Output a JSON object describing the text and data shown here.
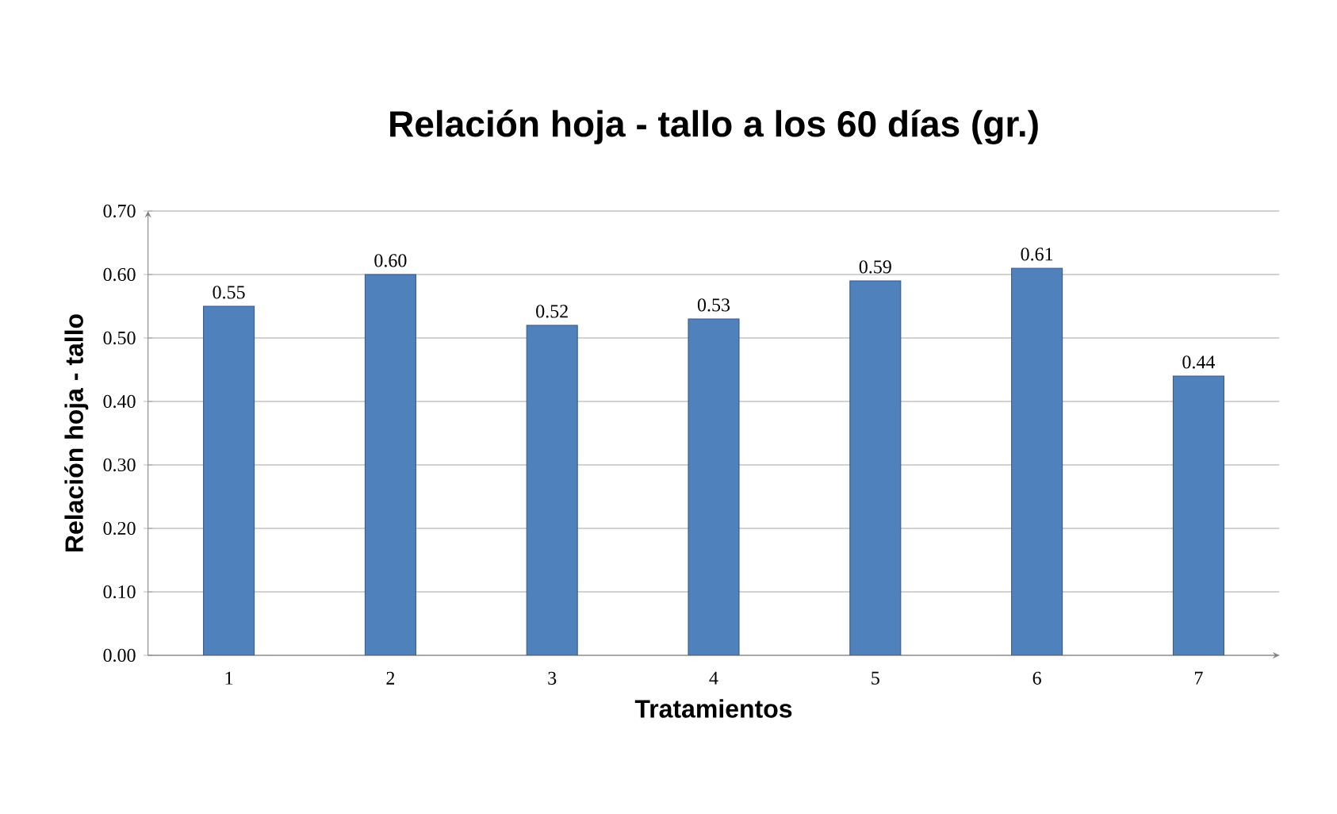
{
  "chart_data": {
    "type": "bar",
    "title": "Relación hoja - tallo a los 60 días (gr.)",
    "xlabel": "Tratamientos",
    "ylabel": "Relación hoja - tallo",
    "categories": [
      "1",
      "2",
      "3",
      "4",
      "5",
      "6",
      "7"
    ],
    "values": [
      0.55,
      0.6,
      0.52,
      0.53,
      0.59,
      0.61,
      0.44
    ],
    "value_labels": [
      "0.55",
      "0.60",
      "0.52",
      "0.53",
      "0.59",
      "0.61",
      "0.44"
    ],
    "color": "#4f81bd",
    "ylim": [
      0,
      0.7
    ],
    "yticks": [
      {
        "value": 0,
        "label": "0.00"
      },
      {
        "value": 0.1,
        "label": "0.10"
      },
      {
        "value": 0.2,
        "label": "0.20"
      },
      {
        "value": 0.3,
        "label": "0.30"
      },
      {
        "value": 0.4,
        "label": "0.40"
      },
      {
        "value": 0.5,
        "label": "0.50"
      },
      {
        "value": 0.6,
        "label": "0.60"
      },
      {
        "value": 0.7,
        "label": "0.70"
      }
    ],
    "grid": "y"
  }
}
